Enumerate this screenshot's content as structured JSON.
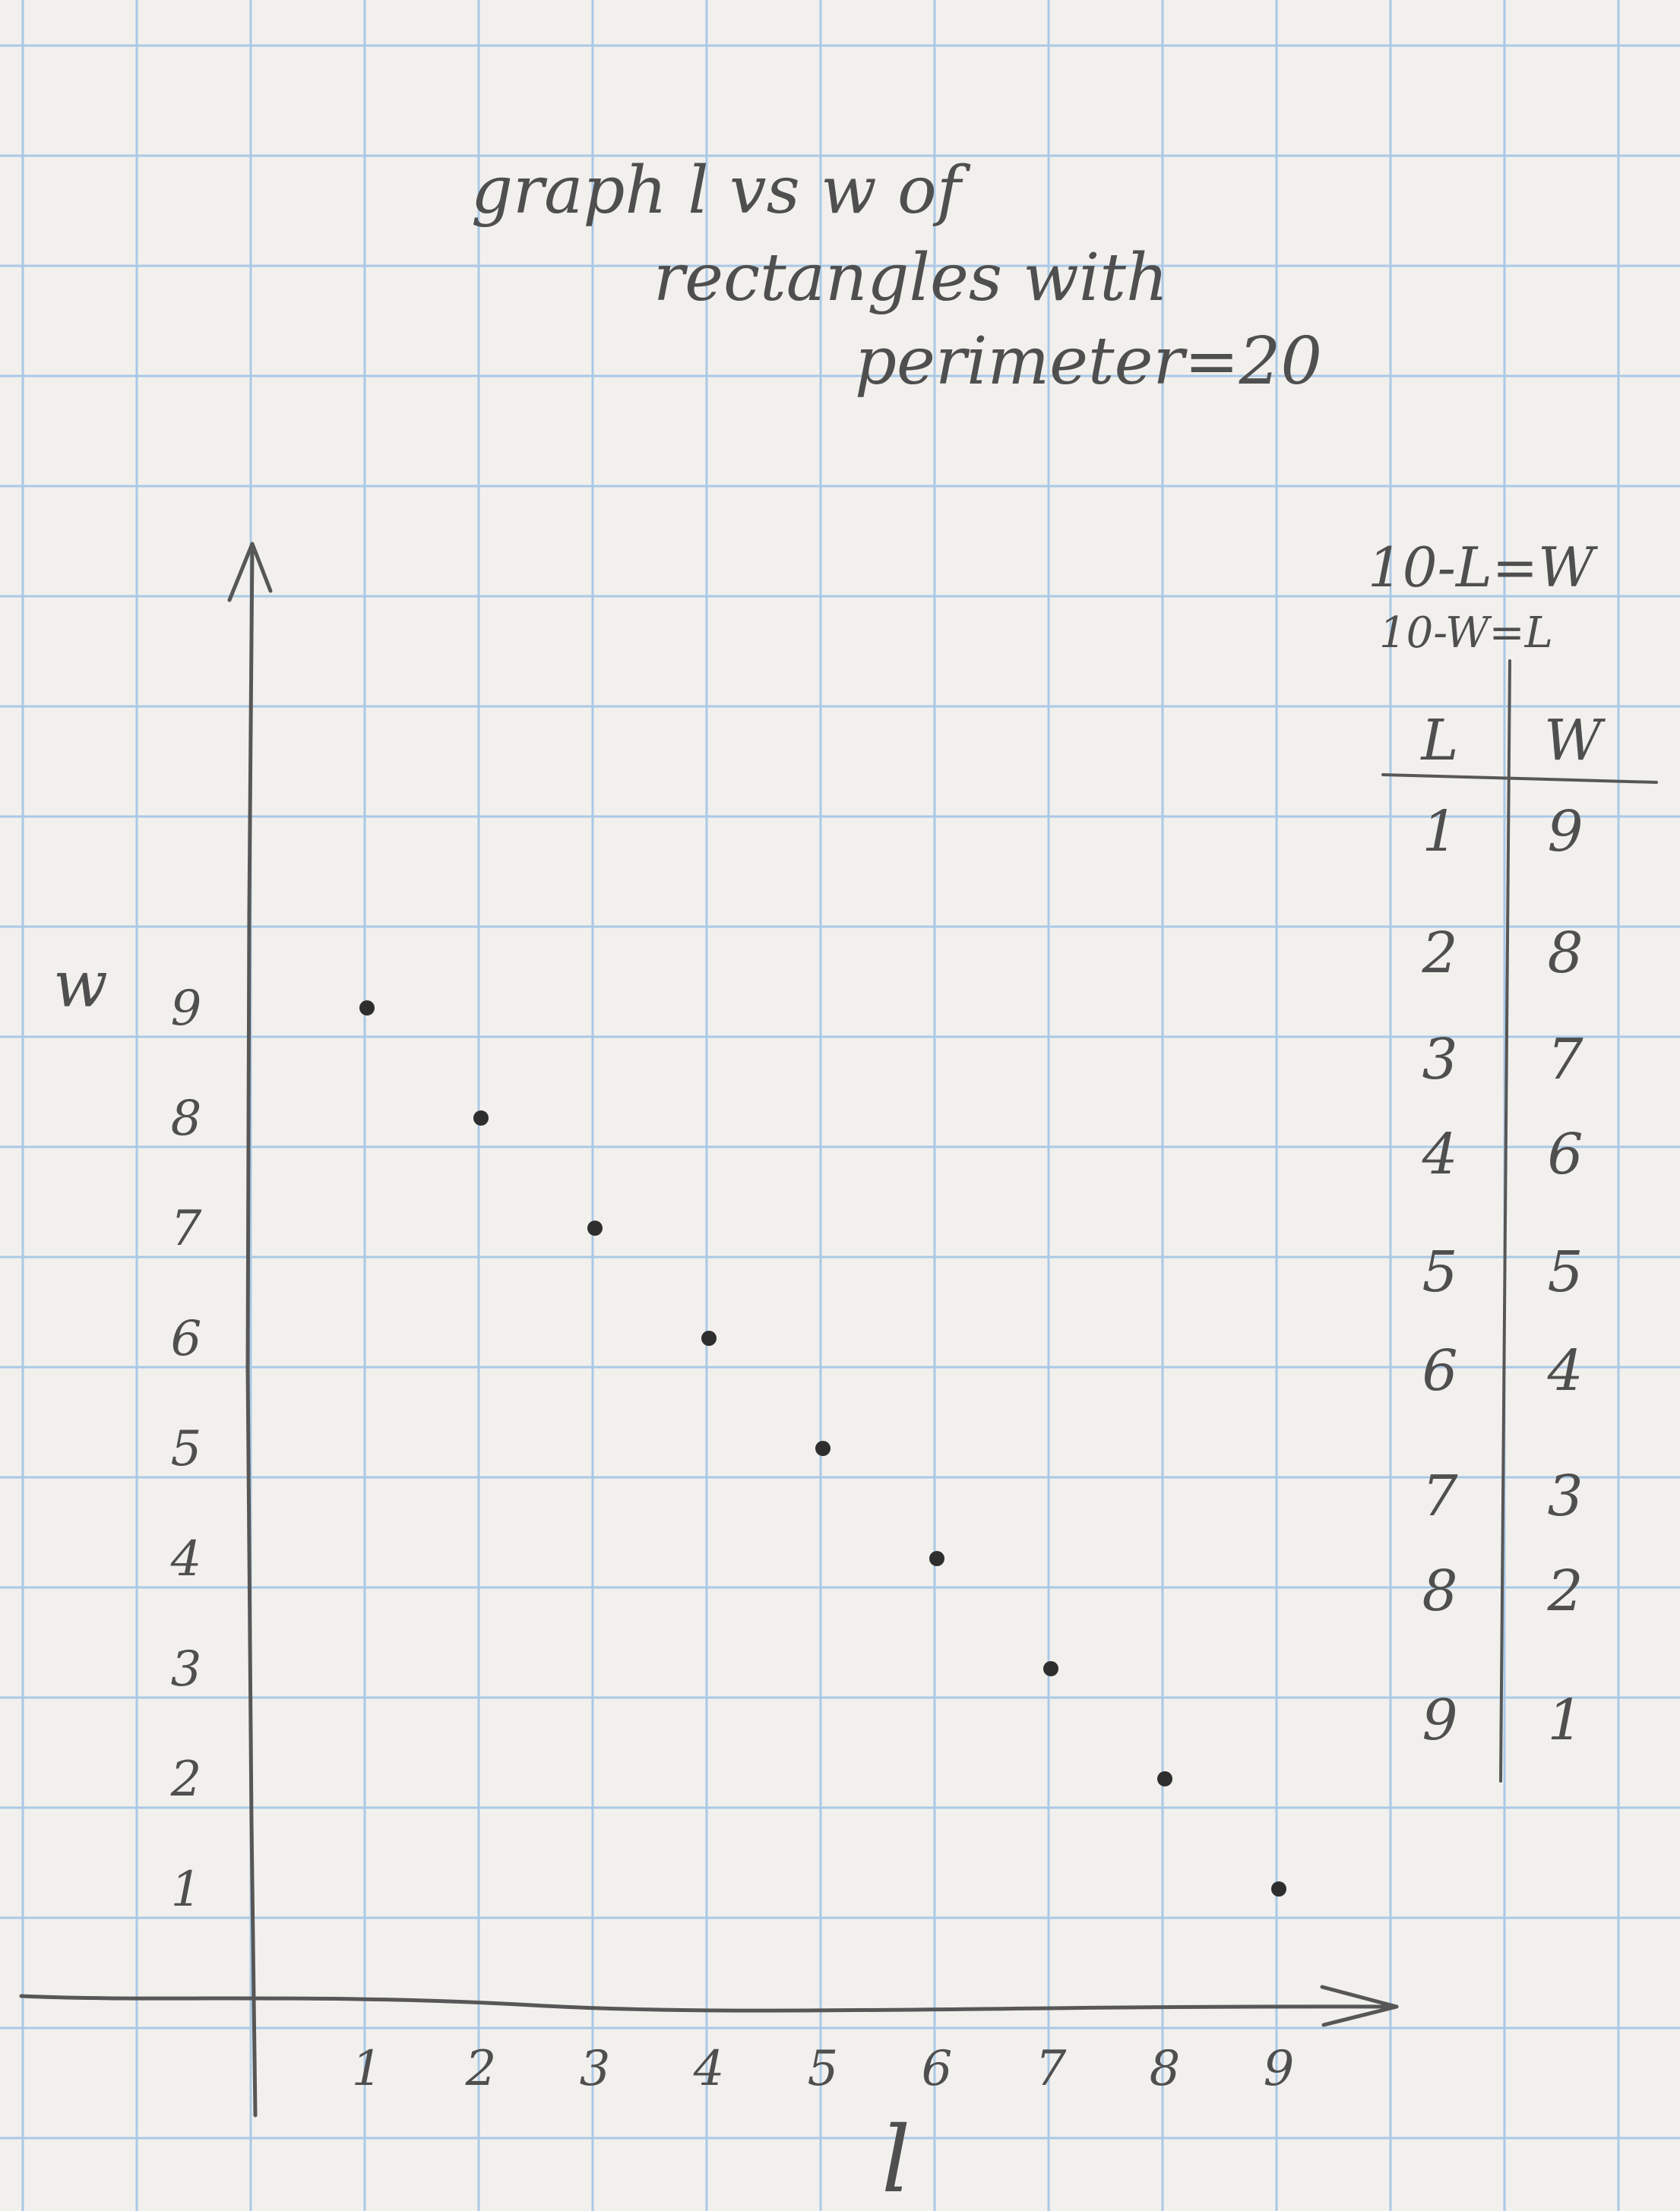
{
  "chart_data": {
    "type": "scatter",
    "title": [
      "graph l vs w of",
      "rectangles with",
      "perimeter=20"
    ],
    "xlabel": "l",
    "ylabel": "w",
    "x_ticks": [
      "1",
      "2",
      "3",
      "4",
      "5",
      "6",
      "7",
      "8",
      "9"
    ],
    "y_ticks": [
      "1",
      "2",
      "3",
      "4",
      "5",
      "6",
      "7",
      "8",
      "9"
    ],
    "xlim": [
      0,
      10
    ],
    "ylim": [
      0,
      10
    ],
    "points": [
      {
        "x": 1,
        "y": 9
      },
      {
        "x": 2,
        "y": 8
      },
      {
        "x": 3,
        "y": 7
      },
      {
        "x": 4,
        "y": 6
      },
      {
        "x": 5,
        "y": 5
      },
      {
        "x": 6,
        "y": 4
      },
      {
        "x": 7,
        "y": 3
      },
      {
        "x": 8,
        "y": 2
      },
      {
        "x": 9,
        "y": 1
      }
    ],
    "equations": [
      "10-L=W",
      "10-W=L"
    ],
    "table": {
      "headers": [
        "L",
        "W"
      ],
      "rows": [
        [
          "1",
          "9"
        ],
        [
          "2",
          "8"
        ],
        [
          "3",
          "7"
        ],
        [
          "4",
          "6"
        ],
        [
          "5",
          "5"
        ],
        [
          "6",
          "4"
        ],
        [
          "7",
          "3"
        ],
        [
          "8",
          "2"
        ],
        [
          "9",
          "1"
        ]
      ]
    },
    "grid": true,
    "colors": {
      "paper": "#f2f0ec",
      "grid": "#a9c9e6",
      "pencil": "#4f4f4f"
    }
  }
}
